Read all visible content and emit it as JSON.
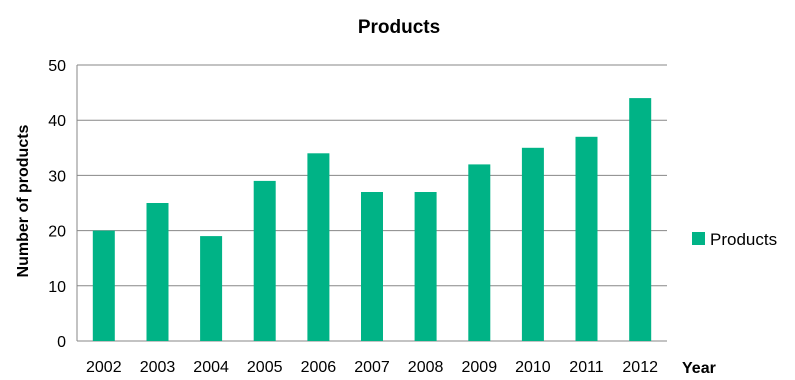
{
  "chart_data": {
    "type": "bar",
    "title": "Products",
    "xlabel": "Year",
    "ylabel": "Number of products",
    "categories": [
      "2002",
      "2003",
      "2004",
      "2005",
      "2006",
      "2007",
      "2008",
      "2009",
      "2010",
      "2011",
      "2012"
    ],
    "series": [
      {
        "name": "Products",
        "values": [
          20,
          25,
          19,
          29,
          34,
          27,
          27,
          32,
          35,
          37,
          44
        ]
      }
    ],
    "ylim": [
      0,
      50
    ],
    "yticks": [
      "0",
      "10",
      "20",
      "30",
      "40",
      "50"
    ],
    "grid": true,
    "legend_position": "right",
    "bar_color": "#00B386",
    "grid_color": "#878787"
  }
}
